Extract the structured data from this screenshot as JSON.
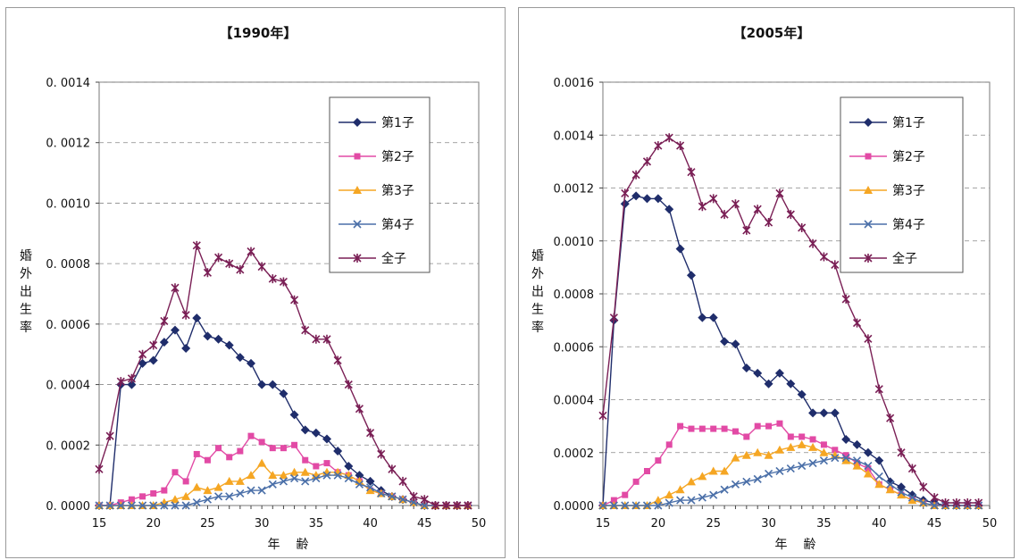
{
  "chart_data": [
    {
      "type": "line",
      "title": "【1990年】",
      "xlabel": "年　齢",
      "ylabel": "婚外出生率",
      "xlim": [
        15,
        50
      ],
      "ylim": [
        0,
        0.0014
      ],
      "xticks": [
        15,
        20,
        25,
        30,
        35,
        40,
        45,
        50
      ],
      "yticks": [
        "0. 0000",
        "0. 0002",
        "0. 0004",
        "0. 0006",
        "0. 0008",
        "0. 0010",
        "0. 0012",
        "0. 0014"
      ],
      "ytick_values": [
        0,
        0.0002,
        0.0004,
        0.0006,
        0.0008,
        0.001,
        0.0012,
        0.0014
      ],
      "grid": true,
      "legend_position": "top-right",
      "x": [
        15,
        16,
        17,
        18,
        19,
        20,
        21,
        22,
        23,
        24,
        25,
        26,
        27,
        28,
        29,
        30,
        31,
        32,
        33,
        34,
        35,
        36,
        37,
        38,
        39,
        40,
        41,
        42,
        43,
        44,
        45,
        46,
        47,
        48,
        49
      ],
      "series": [
        {
          "name": "第1子",
          "color": "#1f2d6b",
          "marker": "diamond",
          "values": [
            0,
            0,
            0.0004,
            0.0004,
            0.00047,
            0.00048,
            0.00054,
            0.00058,
            0.00052,
            0.00062,
            0.00056,
            0.00055,
            0.00053,
            0.00049,
            0.00047,
            0.0004,
            0.0004,
            0.00037,
            0.0003,
            0.00025,
            0.00024,
            0.00022,
            0.00018,
            0.00013,
            0.0001,
            8e-05,
            5e-05,
            3e-05,
            2e-05,
            1e-05,
            0,
            0,
            0,
            0,
            0
          ]
        },
        {
          "name": "第2子",
          "color": "#e24aa5",
          "marker": "square",
          "values": [
            0,
            0,
            1e-05,
            2e-05,
            3e-05,
            4e-05,
            5e-05,
            0.00011,
            8e-05,
            0.00017,
            0.00015,
            0.00019,
            0.00016,
            0.00018,
            0.00023,
            0.00021,
            0.00019,
            0.00019,
            0.0002,
            0.00015,
            0.00013,
            0.00014,
            0.00011,
            0.0001,
            8e-05,
            5e-05,
            4e-05,
            3e-05,
            2e-05,
            1e-05,
            0,
            0,
            0,
            0,
            0
          ]
        },
        {
          "name": "第3子",
          "color": "#f5a623",
          "marker": "triangle",
          "values": [
            0,
            0,
            0,
            0,
            0,
            0,
            1e-05,
            2e-05,
            3e-05,
            6e-05,
            5e-05,
            6e-05,
            8e-05,
            8e-05,
            0.0001,
            0.00014,
            0.0001,
            0.0001,
            0.00011,
            0.00011,
            0.0001,
            0.00011,
            0.00011,
            0.0001,
            8e-05,
            5e-05,
            4e-05,
            3e-05,
            2e-05,
            1e-05,
            0,
            0,
            0,
            0,
            0
          ]
        },
        {
          "name": "第4子",
          "color": "#4a6fa8",
          "marker": "x",
          "values": [
            0,
            0,
            0,
            0,
            0,
            0,
            0,
            0,
            0,
            1e-05,
            2e-05,
            3e-05,
            3e-05,
            4e-05,
            5e-05,
            5e-05,
            7e-05,
            8e-05,
            9e-05,
            8e-05,
            9e-05,
            0.0001,
            0.0001,
            9e-05,
            7e-05,
            6e-05,
            4e-05,
            3e-05,
            2e-05,
            1e-05,
            0,
            0,
            0,
            0,
            0
          ]
        },
        {
          "name": "全子",
          "color": "#7a1f55",
          "marker": "star",
          "values": [
            0.00012,
            0.00023,
            0.00041,
            0.00042,
            0.0005,
            0.00053,
            0.00061,
            0.00072,
            0.00063,
            0.00086,
            0.00077,
            0.00082,
            0.0008,
            0.00078,
            0.00084,
            0.00079,
            0.00075,
            0.00074,
            0.00068,
            0.00058,
            0.00055,
            0.00055,
            0.00048,
            0.0004,
            0.00032,
            0.00024,
            0.00017,
            0.00012,
            8e-05,
            3e-05,
            2e-05,
            0,
            0,
            0,
            0
          ]
        }
      ]
    },
    {
      "type": "line",
      "title": "【2005年】",
      "xlabel": "年　齢",
      "ylabel": "婚外出生率",
      "xlim": [
        15,
        50
      ],
      "ylim": [
        0,
        0.0016
      ],
      "xticks": [
        15,
        20,
        25,
        30,
        35,
        40,
        45,
        50
      ],
      "yticks": [
        "0.0000",
        "0.0002",
        "0.0004",
        "0.0006",
        "0.0008",
        "0.0010",
        "0.0012",
        "0.0014",
        "0.0016"
      ],
      "ytick_values": [
        0,
        0.0002,
        0.0004,
        0.0006,
        0.0008,
        0.001,
        0.0012,
        0.0014,
        0.0016
      ],
      "grid": true,
      "legend_position": "top-right",
      "x": [
        15,
        16,
        17,
        18,
        19,
        20,
        21,
        22,
        23,
        24,
        25,
        26,
        27,
        28,
        29,
        30,
        31,
        32,
        33,
        34,
        35,
        36,
        37,
        38,
        39,
        40,
        41,
        42,
        43,
        44,
        45,
        46,
        47,
        48,
        49
      ],
      "series": [
        {
          "name": "第1子",
          "color": "#1f2d6b",
          "marker": "diamond",
          "values": [
            0,
            0.0007,
            0.00114,
            0.00117,
            0.00116,
            0.00116,
            0.00112,
            0.00097,
            0.00087,
            0.00071,
            0.00071,
            0.00062,
            0.00061,
            0.00052,
            0.0005,
            0.00046,
            0.0005,
            0.00046,
            0.00042,
            0.00035,
            0.00035,
            0.00035,
            0.00025,
            0.00023,
            0.0002,
            0.00017,
            9e-05,
            7e-05,
            4e-05,
            2e-05,
            1e-05,
            0,
            0,
            0,
            0
          ]
        },
        {
          "name": "第2子",
          "color": "#e24aa5",
          "marker": "square",
          "values": [
            0,
            2e-05,
            4e-05,
            9e-05,
            0.00013,
            0.00017,
            0.00023,
            0.0003,
            0.00029,
            0.00029,
            0.00029,
            0.00029,
            0.00028,
            0.00026,
            0.0003,
            0.0003,
            0.00031,
            0.00026,
            0.00026,
            0.00025,
            0.00023,
            0.00021,
            0.00019,
            0.00016,
            0.00014,
            8e-05,
            6e-05,
            4e-05,
            2e-05,
            1e-05,
            0,
            0,
            0,
            0,
            0
          ]
        },
        {
          "name": "第3子",
          "color": "#f5a623",
          "marker": "triangle",
          "values": [
            0,
            0,
            0,
            0,
            0,
            2e-05,
            4e-05,
            6e-05,
            9e-05,
            0.00011,
            0.00013,
            0.00013,
            0.00018,
            0.00019,
            0.0002,
            0.00019,
            0.00021,
            0.00022,
            0.00023,
            0.00022,
            0.0002,
            0.00019,
            0.00017,
            0.00015,
            0.00012,
            8e-05,
            6e-05,
            4e-05,
            2e-05,
            1e-05,
            0,
            0,
            0,
            0,
            0
          ]
        },
        {
          "name": "第4子",
          "color": "#4a6fa8",
          "marker": "x",
          "values": [
            0,
            0,
            0,
            0,
            0,
            0,
            1e-05,
            2e-05,
            2e-05,
            3e-05,
            4e-05,
            6e-05,
            8e-05,
            9e-05,
            0.0001,
            0.00012,
            0.00013,
            0.00014,
            0.00015,
            0.00016,
            0.00017,
            0.00018,
            0.00018,
            0.00017,
            0.00015,
            0.00011,
            8e-05,
            5e-05,
            3e-05,
            1e-05,
            0,
            0,
            0,
            0,
            0
          ]
        },
        {
          "name": "全子",
          "color": "#7a1f55",
          "marker": "star",
          "values": [
            0.00034,
            0.00071,
            0.00118,
            0.00125,
            0.0013,
            0.00136,
            0.00139,
            0.00136,
            0.00126,
            0.00113,
            0.00116,
            0.0011,
            0.00114,
            0.00104,
            0.00112,
            0.00107,
            0.00118,
            0.0011,
            0.00105,
            0.00099,
            0.00094,
            0.00091,
            0.00078,
            0.00069,
            0.00063,
            0.00044,
            0.00033,
            0.0002,
            0.00014,
            7e-05,
            3e-05,
            1e-05,
            1e-05,
            1e-05,
            1e-05
          ]
        }
      ]
    }
  ]
}
